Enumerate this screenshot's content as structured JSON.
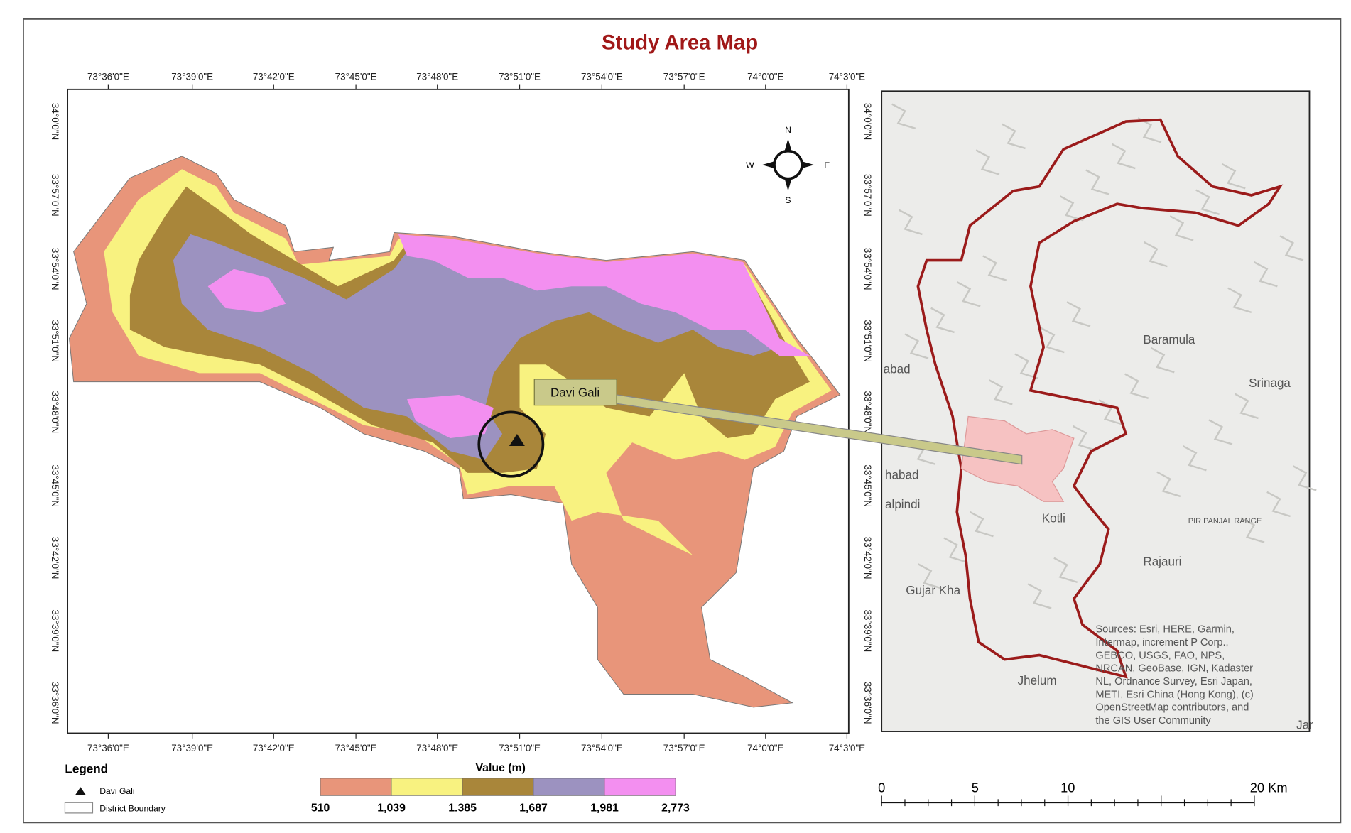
{
  "title": "Study Area Map",
  "longitudes": [
    "73°36'0\"E",
    "73°39'0\"E",
    "73°42'0\"E",
    "73°45'0\"E",
    "73°48'0\"E",
    "73°51'0\"E",
    "73°54'0\"E",
    "73°57'0\"E",
    "74°0'0\"E",
    "74°3'0\"E"
  ],
  "latitudes": [
    "34°0'0\"N",
    "33°57'0\"N",
    "33°54'0\"N",
    "33°51'0\"N",
    "33°48'0\"N",
    "33°45'0\"N",
    "33°42'0\"N",
    "33°39'0\"N",
    "33°36'0\"N"
  ],
  "compass": {
    "n": "N",
    "s": "S",
    "e": "E",
    "w": "W"
  },
  "callout": "Davi Gali",
  "legend": {
    "title": "Legend",
    "items": [
      "Davi Gali",
      "District Boundary"
    ]
  },
  "elevation": {
    "title": "Value (m)",
    "labels": [
      "510",
      "1,039",
      "1.385",
      "1,687",
      "1,981",
      "2,773"
    ]
  },
  "inset": {
    "places": [
      "abad",
      "Baramula",
      "Srinaga",
      "habad",
      "alpindi",
      "Kotli",
      "PIR PANJAL RANGE",
      "Rajauri",
      "Gujar Kha",
      "Jhelum",
      "Jar"
    ],
    "sources": [
      "Sources: Esri, HERE, Garmin,",
      "Intermap, increment P Corp.,",
      "GEBCO, USGS, FAO, NPS,",
      "NRCAN, GeoBase, IGN, Kadaster",
      "NL, Ordnance Survey, Esri Japan,",
      "METI, Esri China (Hong Kong), (c)",
      "OpenStreetMap contributors, and",
      "the GIS User Community"
    ]
  },
  "scale": [
    "0",
    "5",
    "10",
    "20 Km"
  ]
}
